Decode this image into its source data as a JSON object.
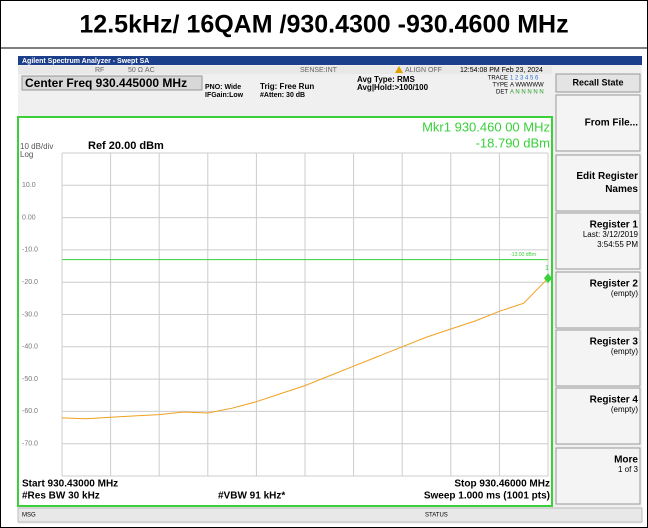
{
  "title": "12.5kHz/ 16QAM /930.4300 -930.4600 MHz",
  "header": {
    "app": "Agilent Spectrum Analyzer - Swept SA",
    "rf": "RF",
    "impedance": "50 Ω  AC",
    "sense": "SENSE:INT",
    "align": "ALIGN OFF",
    "datetime": "12:54:08 PM Feb 23, 2024"
  },
  "settings": {
    "center": "Center Freq 930.445000 MHz",
    "pno": "PNO: Wide",
    "ifgain": "IFGain:Low",
    "trig": "Trig: Free Run",
    "atten": "#Atten: 30 dB",
    "avg_type": "Avg Type: RMS",
    "avg_hold": "Avg|Hold:>100/100",
    "trace_label": "TRACE",
    "trace_nums": "1 2 3 4 5 6",
    "type_label": "TYPE",
    "type_val": "A WWWWW",
    "det_label": "DET",
    "det_val": "A N N N N N"
  },
  "plot": {
    "scale": "10 dB/div",
    "log": "Log",
    "ref": "Ref 20.00 dBm",
    "marker": "Mkr1 930.460 00 MHz",
    "marker_value": "-18.790 dBm",
    "marker_num": "1",
    "display_line": -13,
    "display_line_label": "-13.00 dBm",
    "ylim": [
      -80,
      20
    ],
    "xlim": [
      930.43,
      930.46
    ],
    "yticks": [
      {
        "value": 10,
        "label": "10.0"
      },
      {
        "value": 0,
        "label": "0.00"
      },
      {
        "value": -10,
        "label": "-10.0"
      },
      {
        "value": -20,
        "label": "-20.0"
      },
      {
        "value": -30,
        "label": "-30.0"
      },
      {
        "value": -40,
        "label": "-40.0"
      },
      {
        "value": -50,
        "label": "-50.0"
      },
      {
        "value": -60,
        "label": "-60.0"
      },
      {
        "value": -70,
        "label": "-70.0"
      }
    ],
    "trace": {
      "x": [
        930.43,
        930.4315,
        930.433,
        930.4345,
        930.436,
        930.4375,
        930.439,
        930.4405,
        930.442,
        930.4435,
        930.445,
        930.4465,
        930.448,
        930.4495,
        930.451,
        930.4525,
        930.454,
        930.4555,
        930.457,
        930.4585,
        930.46
      ],
      "values": [
        -62,
        -62.3,
        -61.8,
        -61.4,
        -61,
        -60.2,
        -60.5,
        -59,
        -57,
        -54.5,
        -52,
        -49,
        -46,
        -43,
        -40,
        -37,
        -34.5,
        -32,
        -29,
        -26.5,
        -18.79
      ]
    },
    "start": "Start 930.43000 MHz",
    "stop": "Stop 930.46000 MHz",
    "rbw": "#Res BW 30 kHz",
    "vbw": "#VBW 91 kHz*",
    "sweep": "Sweep  1.000 ms (1001 pts)"
  },
  "softkeys": {
    "menu": "Recall State",
    "keys": [
      [
        "From File..."
      ],
      [
        "Edit Register",
        "Names"
      ],
      [
        "Register 1",
        "Last: 3/12/2019",
        "3:54:55 PM"
      ],
      [
        "Register 2",
        "(empty)"
      ],
      [
        "Register 3",
        "(empty)"
      ],
      [
        "Register 4",
        "(empty)"
      ],
      [
        "More",
        "1 of 3"
      ]
    ]
  },
  "status": {
    "msg": "MSG",
    "status": "STATUS"
  }
}
